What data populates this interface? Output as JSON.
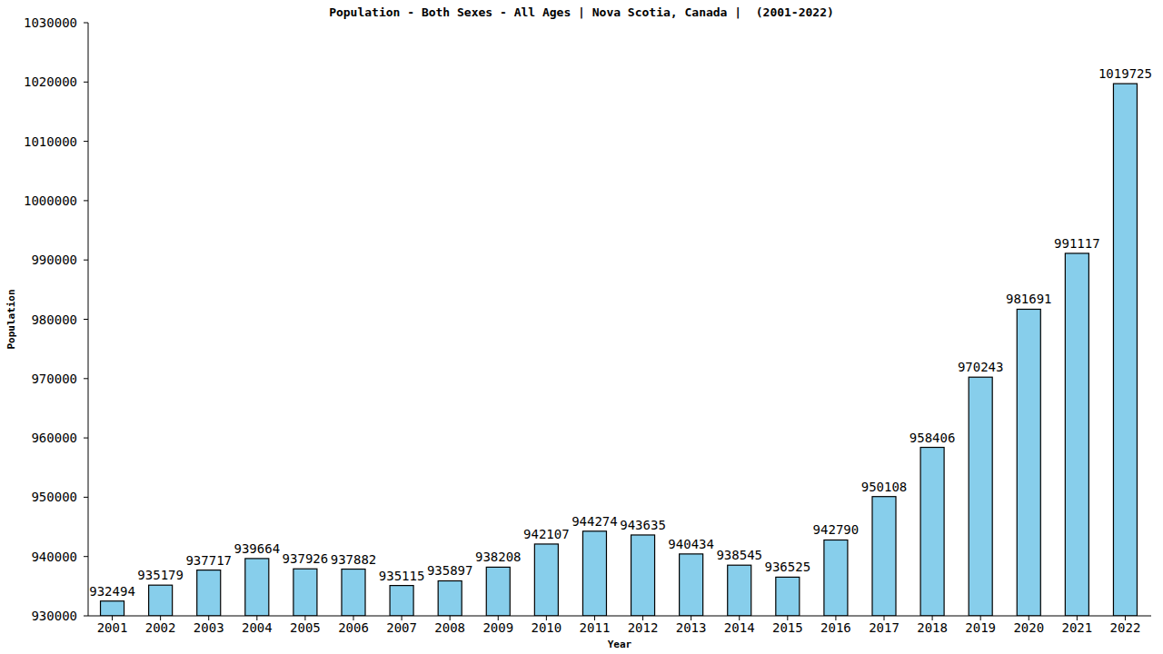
{
  "chart_data": {
    "type": "bar",
    "title": "Population - Both Sexes - All Ages | Nova Scotia, Canada |  (2001-2022)",
    "x_label": "Year",
    "y_label": "Population",
    "categories": [
      "2001",
      "2002",
      "2003",
      "2004",
      "2005",
      "2006",
      "2007",
      "2008",
      "2009",
      "2010",
      "2011",
      "2012",
      "2013",
      "2014",
      "2015",
      "2016",
      "2017",
      "2018",
      "2019",
      "2020",
      "2021",
      "2022"
    ],
    "values": [
      932494,
      935179,
      937717,
      939664,
      937926,
      937882,
      935115,
      935897,
      938208,
      942107,
      944274,
      943635,
      940434,
      938545,
      936525,
      942790,
      950108,
      958406,
      970243,
      981691,
      991117,
      1019725
    ],
    "color": "#87ceeb",
    "ylim": [
      930000,
      1030000
    ],
    "yticks": [
      930000,
      940000,
      950000,
      960000,
      970000,
      980000,
      990000,
      1000000,
      1010000,
      1020000,
      1030000
    ],
    "grid": false,
    "data_labels": true
  }
}
